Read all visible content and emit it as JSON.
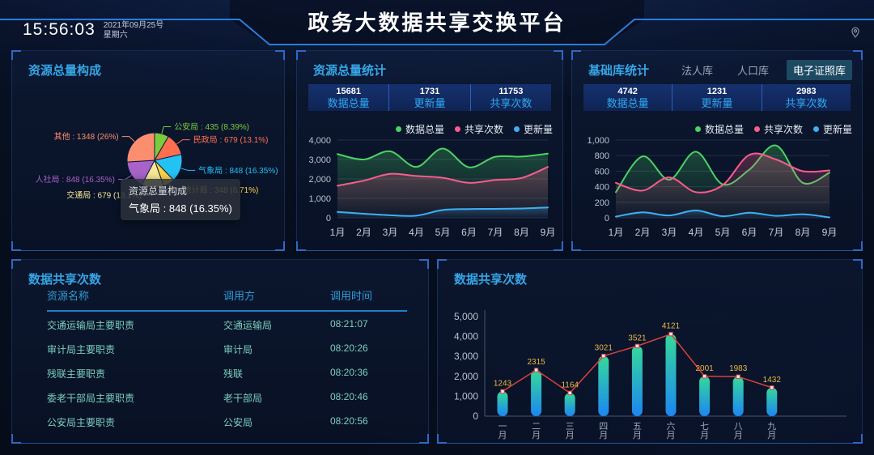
{
  "header": {
    "time": "15:56:03",
    "date": "2021年09月25号",
    "weekday": "星期六",
    "title": "政务大数据共享交换平台",
    "icons": [
      "location-pin"
    ]
  },
  "panels": {
    "resource_composition": {
      "title": "资源总量构成",
      "tooltip": {
        "line1": "资源总量构成",
        "line2": "气象局 : 848 (16.35%)"
      }
    },
    "resource_stats": {
      "title": "资源总量统计",
      "stats": [
        {
          "value": "15681",
          "label": "数据总量"
        },
        {
          "value": "1731",
          "label": "更新量"
        },
        {
          "value": "11753",
          "label": "共享次数"
        }
      ]
    },
    "base_library": {
      "title": "基础库统计",
      "tabs": [
        {
          "label": "法人库",
          "active": false
        },
        {
          "label": "人口库",
          "active": false
        },
        {
          "label": "电子证照库",
          "active": true
        }
      ],
      "stats": [
        {
          "value": "4742",
          "label": "数据总量"
        },
        {
          "value": "1231",
          "label": "更新量"
        },
        {
          "value": "2983",
          "label": "共享次数"
        }
      ]
    },
    "share_table": {
      "title": "数据共享次数",
      "columns": [
        "资源名称",
        "调用方",
        "调用时间"
      ],
      "rows": [
        [
          "交通运输局主要职责",
          "交通运输局",
          "08:21:07"
        ],
        [
          "审计局主要职责",
          "审计局",
          "08:20:26"
        ],
        [
          "残联主要职责",
          "残联",
          "08:20:36"
        ],
        [
          "委老干部局主要职责",
          "老干部局",
          "08:20:46"
        ],
        [
          "公安局主要职责",
          "公安局",
          "08:20:56"
        ]
      ]
    },
    "share_bar": {
      "title": "数据共享次数"
    }
  },
  "colors": {
    "panel_title": "#36A5E6",
    "stat_label": "#2FA9F2",
    "grid": "#232F47",
    "axis": "#46546A",
    "tick_text": "#B9C3D2",
    "cat_text": "#C6CEDA",
    "bar_top": "#35D99A",
    "bar_bottom": "#1C86F2",
    "bar_line_red": "#D8413C",
    "bar_label_yellow": "#E9B744",
    "table_header": "#2F9BD6",
    "table_text": "#7BD0BF"
  },
  "chart_data": [
    {
      "id": "pie_resource",
      "type": "pie",
      "title": "资源总量构成",
      "items": [
        {
          "name": "公安局",
          "value": 435,
          "pct": "8.39%",
          "color": "#7CCB3F"
        },
        {
          "name": "民政局",
          "value": 679,
          "pct": "13.1%",
          "color": "#FF6E4F"
        },
        {
          "name": "气象局",
          "value": 848,
          "pct": "16.35%",
          "color": "#23C2F2"
        },
        {
          "name": "统计局",
          "value": 348,
          "pct": "6.71%",
          "color": "#FFD245"
        },
        {
          "name": "交通局",
          "value": 679,
          "pct": "13.1%",
          "color": "#F6E795"
        },
        {
          "name": "人社局",
          "value": 848,
          "pct": "16.35%",
          "color": "#A763C9"
        },
        {
          "name": "其他",
          "value": 1348,
          "pct": "26%",
          "color": "#FC8E70"
        }
      ]
    },
    {
      "id": "line_mid",
      "type": "line",
      "title": "资源总量统计",
      "categories": [
        "1月",
        "2月",
        "3月",
        "4月",
        "5月",
        "6月",
        "7月",
        "8月",
        "9月"
      ],
      "ylim": [
        0,
        4000
      ],
      "ystep": 1000,
      "grid": true,
      "legend_position": "top-right",
      "series": [
        {
          "name": "数据总量",
          "color": "#4BD263",
          "values": [
            3280,
            3000,
            3420,
            2620,
            3560,
            2600,
            3140,
            3150,
            3300
          ]
        },
        {
          "name": "共享次数",
          "color": "#FB5C8C",
          "values": [
            1650,
            1910,
            2260,
            2150,
            2060,
            1800,
            1950,
            2050,
            2620
          ]
        },
        {
          "name": "更新量",
          "color": "#3FAEF5",
          "values": [
            300,
            210,
            130,
            110,
            400,
            450,
            460,
            480,
            530
          ]
        }
      ]
    },
    {
      "id": "line_right",
      "type": "line",
      "title": "基础库统计 - 电子证照库",
      "categories": [
        "1月",
        "2月",
        "3月",
        "4月",
        "5月",
        "6月",
        "7月",
        "8月",
        "9月"
      ],
      "ylim": [
        0,
        1000
      ],
      "ystep": 200,
      "grid": true,
      "legend_position": "top-right",
      "series": [
        {
          "name": "数据总量",
          "color": "#4BD263",
          "values": [
            330,
            790,
            490,
            850,
            430,
            620,
            930,
            450,
            580
          ]
        },
        {
          "name": "共享次数",
          "color": "#FB5C8C",
          "values": [
            450,
            350,
            520,
            330,
            420,
            810,
            750,
            600,
            610
          ]
        },
        {
          "name": "更新量",
          "color": "#3FAEF5",
          "values": [
            15,
            70,
            30,
            95,
            20,
            65,
            25,
            45,
            5
          ]
        }
      ]
    },
    {
      "id": "bar_share",
      "type": "bar",
      "title": "数据共享次数",
      "categories": [
        "一月",
        "二月",
        "三月",
        "四月",
        "五月",
        "六月",
        "七月",
        "八月",
        "九月"
      ],
      "values": [
        1243,
        2315,
        1164,
        3021,
        3521,
        4121,
        2001,
        1983,
        1432
      ],
      "ylim": [
        0,
        5000
      ],
      "ystep": 1000,
      "grid": false,
      "overlay_line": true,
      "value_labels": true
    }
  ]
}
